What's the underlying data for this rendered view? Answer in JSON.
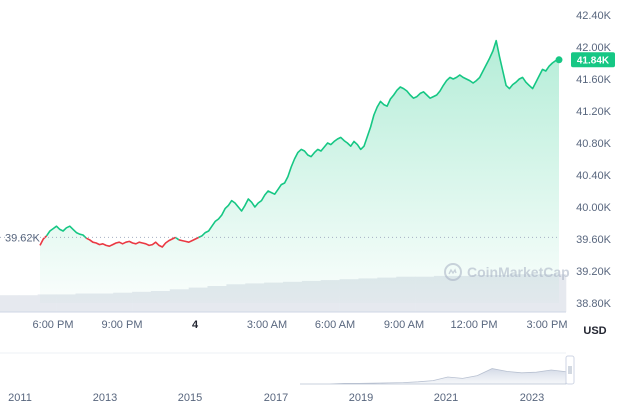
{
  "chart_data": {
    "type": "area",
    "y_axis": {
      "ticks": [
        "42.40K",
        "42.00K",
        "41.60K",
        "41.20K",
        "40.80K",
        "40.40K",
        "40.00K",
        "39.60K",
        "39.20K",
        "38.80K"
      ],
      "unit_label": "USD",
      "ylim": [
        38800,
        42400
      ]
    },
    "x_axis": {
      "ticks": [
        "6:00 PM",
        "9:00 PM",
        "4",
        "3:00 AM",
        "6:00 AM",
        "9:00 AM",
        "12:00 PM",
        "3:00 PM"
      ]
    },
    "reference_price": {
      "value": 39620,
      "label": "39.62K"
    },
    "current_price": {
      "value": 41840,
      "label": "41.84K"
    },
    "colors": {
      "up": "#16c784",
      "down": "#ea3943"
    },
    "watermark": "CoinMarketCap",
    "series": [
      {
        "values": [
          39520,
          39600,
          39640,
          39700,
          39730,
          39760,
          39720,
          39700,
          39740,
          39760,
          39720,
          39680,
          39660,
          39650,
          39610,
          39590,
          39560,
          39550,
          39530,
          39540,
          39520,
          39510,
          39530,
          39550,
          39560,
          39540,
          39560,
          39570,
          39550,
          39540,
          39560,
          39550,
          39540,
          39520,
          39530,
          39560,
          39520,
          39500,
          39550,
          39580,
          39600,
          39620,
          39590,
          39580,
          39570,
          39560,
          39580,
          39600,
          39620,
          39640,
          39680,
          39700,
          39760,
          39820,
          39850,
          39900,
          39980,
          40020,
          40080,
          40050,
          40000,
          39950,
          40020,
          40100,
          40060,
          40000,
          40050,
          40080,
          40150,
          40200,
          40180,
          40160,
          40220,
          40280,
          40300,
          40380,
          40500,
          40600,
          40680,
          40720,
          40700,
          40650,
          40630,
          40680,
          40720,
          40700,
          40750,
          40800,
          40780,
          40820,
          40850,
          40870,
          40830,
          40800,
          40760,
          40820,
          40780,
          40720,
          40760,
          40880,
          41000,
          41150,
          41250,
          41320,
          41280,
          41260,
          41350,
          41400,
          41460,
          41500,
          41480,
          41450,
          41400,
          41360,
          41380,
          41420,
          41440,
          41400,
          41360,
          41380,
          41400,
          41450,
          41520,
          41580,
          41620,
          41600,
          41620,
          41650,
          41620,
          41600,
          41580,
          41550,
          41580,
          41620,
          41700,
          41780,
          41860,
          41950,
          42080,
          41880,
          41700,
          41520,
          41480,
          41530,
          41560,
          41600,
          41620,
          41560,
          41520,
          41480,
          41560,
          41640,
          41720,
          41700,
          41760,
          41800,
          41830,
          41840
        ]
      }
    ],
    "volume": {
      "values": [
        20,
        20,
        21,
        21,
        22,
        22,
        23,
        24,
        25,
        27,
        29,
        31,
        33,
        34,
        35,
        36,
        37,
        38,
        39,
        40,
        41,
        42,
        42,
        43,
        43,
        44,
        44,
        45,
        45,
        45
      ]
    },
    "navigator": {
      "ticks": [
        "2011",
        "2013",
        "2015",
        "2017",
        "2019",
        "2021",
        "2023"
      ]
    }
  }
}
